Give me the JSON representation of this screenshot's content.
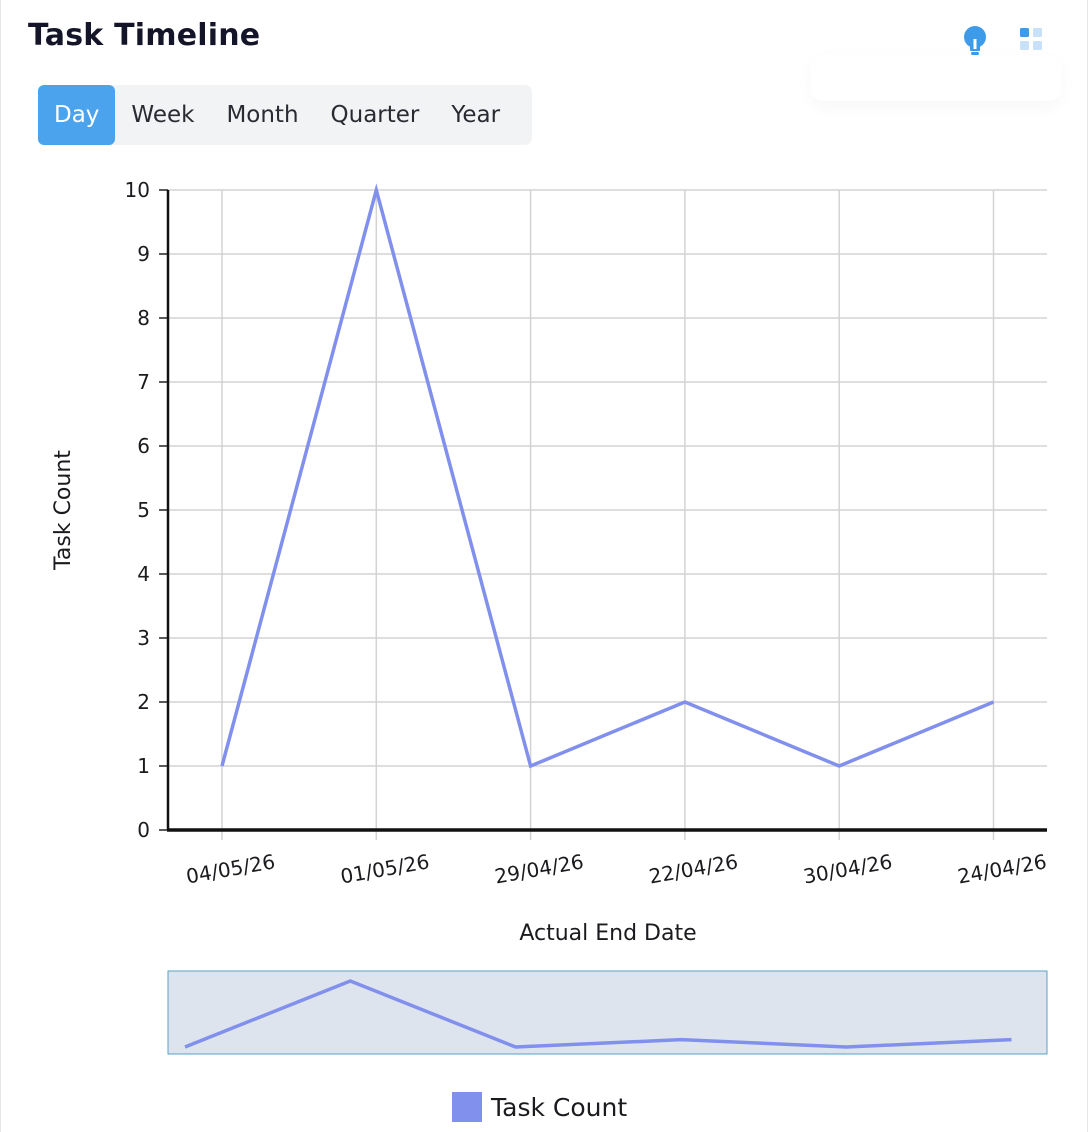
{
  "header": {
    "title": "Task Timeline",
    "icons": [
      "lightbulb-icon",
      "grid-icon"
    ]
  },
  "tabs": [
    {
      "label": "Day",
      "active": true
    },
    {
      "label": "Week",
      "active": false
    },
    {
      "label": "Month",
      "active": false
    },
    {
      "label": "Quarter",
      "active": false
    },
    {
      "label": "Year",
      "active": false
    }
  ],
  "colors": {
    "accent": "#4ba3ee",
    "series": "#8190ed",
    "grid": "#d3d3d3",
    "navigator_fill": "#dde4ee",
    "navigator_border": "#5aa0c8"
  },
  "chart_data": {
    "type": "line",
    "title": "",
    "categories": [
      "04/05/26",
      "01/05/26",
      "29/04/26",
      "22/04/26",
      "30/04/26",
      "24/04/26"
    ],
    "series": [
      {
        "name": "Task Count",
        "values": [
          1,
          10,
          1,
          2,
          1,
          2
        ]
      }
    ],
    "xlabel": "Actual End Date",
    "ylabel": "Task Count",
    "ylim": [
      0,
      10
    ],
    "yticks": [
      0,
      1,
      2,
      3,
      4,
      5,
      6,
      7,
      8,
      9,
      10
    ],
    "grid": true,
    "legend": "bottom",
    "navigator": true
  }
}
